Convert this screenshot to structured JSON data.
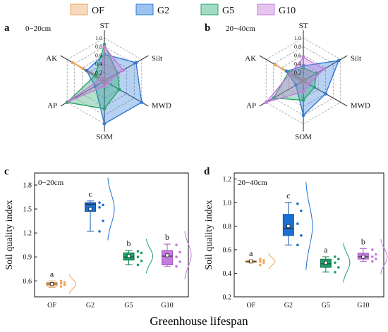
{
  "legend": [
    {
      "name": "OF",
      "fill": "#f9d9bd",
      "stroke": "#e9a766"
    },
    {
      "name": "G2",
      "fill": "#9cc3f1",
      "stroke": "#2f7ad6"
    },
    {
      "name": "G5",
      "fill": "#a3dcc4",
      "stroke": "#27a36a"
    },
    {
      "name": "G10",
      "fill": "#e6c5f1",
      "stroke": "#c27ade"
    }
  ],
  "colors": {
    "OF": {
      "box": "#f7c89a",
      "edge": "#e09a50",
      "dot": "#f0a45a"
    },
    "G2": {
      "box": "#1b6fd1",
      "edge": "#1558a8",
      "dot": "#1b6fd1"
    },
    "G5": {
      "box": "#1aa164",
      "edge": "#127a4b",
      "dot": "#1aa164"
    },
    "G10": {
      "box": "#c37bdf",
      "edge": "#a35cc0",
      "dot": "#c37bdf"
    }
  },
  "xlabel": "Greenhouse lifespan",
  "chart_data": [
    {
      "type": "radar",
      "panel": "a",
      "depth": "0−20cm",
      "axes": [
        "ST",
        "Silt",
        "MWD",
        "SOM",
        "AP",
        "AK"
      ],
      "rticks": [
        "0.2",
        "0.4",
        "0.6",
        "0.8",
        "1.0"
      ],
      "rlim": [
        0,
        1
      ],
      "series": [
        {
          "name": "OF",
          "values": [
            0.05,
            0.05,
            0.05,
            0.05,
            0.05,
            0.85
          ]
        },
        {
          "name": "G2",
          "values": [
            0.62,
            0.85,
            1.0,
            1.0,
            0.25,
            0.48
          ]
        },
        {
          "name": "G5",
          "values": [
            0.85,
            0.35,
            0.4,
            0.65,
            1.0,
            0.25
          ]
        },
        {
          "name": "G10",
          "values": [
            0.8,
            0.5,
            0.08,
            0.12,
            0.95,
            0.1
          ]
        }
      ]
    },
    {
      "type": "radar",
      "panel": "b",
      "depth": "20−40cm",
      "axes": [
        "ST",
        "Silt",
        "MWD",
        "SOM",
        "AP",
        "AK"
      ],
      "rticks": [
        "0.2",
        "0.4",
        "0.6",
        "0.8",
        "1.0"
      ],
      "rlim": [
        0,
        1
      ],
      "series": [
        {
          "name": "OF",
          "values": [
            0.05,
            0.05,
            0.05,
            0.05,
            0.05,
            0.75
          ]
        },
        {
          "name": "G2",
          "values": [
            0.35,
            0.95,
            0.6,
            0.8,
            0.2,
            0.45
          ]
        },
        {
          "name": "G5",
          "values": [
            0.3,
            0.35,
            0.3,
            0.45,
            0.8,
            0.4
          ]
        },
        {
          "name": "G10",
          "values": [
            0.55,
            0.55,
            0.15,
            0.25,
            1.0,
            0.35
          ]
        }
      ]
    },
    {
      "type": "box",
      "panel": "c",
      "depth": "0−20cm",
      "ylabel": "Soil quality index",
      "categories": [
        "OF",
        "G2",
        "G5",
        "G10"
      ],
      "ylim": [
        0.4,
        1.95
      ],
      "yticks": [
        "0.6",
        "0.9",
        "1.2",
        "1.5",
        "1.8"
      ],
      "boxes": [
        {
          "name": "OF",
          "min": 0.52,
          "q1": 0.535,
          "median": 0.56,
          "q3": 0.58,
          "max": 0.6,
          "mean": 0.56,
          "letter": "a",
          "points": [
            0.53,
            0.55,
            0.57,
            0.58,
            0.6
          ]
        },
        {
          "name": "G2",
          "min": 1.22,
          "q1": 1.47,
          "median": 1.56,
          "q3": 1.58,
          "max": 1.6,
          "mean": 1.5,
          "letter": "c",
          "points": [
            1.22,
            1.35,
            1.52,
            1.55,
            1.58
          ]
        },
        {
          "name": "G5",
          "min": 0.8,
          "q1": 0.86,
          "median": 0.9,
          "q3": 0.95,
          "max": 0.98,
          "mean": 0.91,
          "letter": "b",
          "points": [
            0.8,
            0.85,
            0.9,
            0.95,
            0.97
          ]
        },
        {
          "name": "G10",
          "min": 0.78,
          "q1": 0.8,
          "median": 0.91,
          "q3": 0.98,
          "max": 1.06,
          "mean": 0.92,
          "letter": "b",
          "points": [
            0.78,
            0.84,
            0.9,
            0.96,
            1.05
          ]
        }
      ]
    },
    {
      "type": "box",
      "panel": "d",
      "depth": "20−40cm",
      "ylabel": "Soil quality index",
      "categories": [
        "OF",
        "G2",
        "G5",
        "G10"
      ],
      "ylim": [
        0.2,
        1.25
      ],
      "yticks": [
        "0.2",
        "0.4",
        "0.6",
        "0.8",
        "1.0",
        "1.2"
      ],
      "boxes": [
        {
          "name": "OF",
          "min": 0.49,
          "q1": 0.492,
          "median": 0.5,
          "q3": 0.505,
          "max": 0.51,
          "mean": 0.5,
          "letter": "a",
          "points": [
            0.47,
            0.49,
            0.5,
            0.51,
            0.52
          ]
        },
        {
          "name": "G2",
          "min": 0.64,
          "q1": 0.72,
          "median": 0.78,
          "q3": 0.9,
          "max": 1.0,
          "mean": 0.8,
          "letter": "c",
          "points": [
            0.64,
            0.72,
            0.82,
            0.93,
            0.99
          ]
        },
        {
          "name": "G5",
          "min": 0.41,
          "q1": 0.45,
          "median": 0.48,
          "q3": 0.52,
          "max": 0.54,
          "mean": 0.49,
          "letter": "a",
          "points": [
            0.41,
            0.45,
            0.49,
            0.52,
            0.54
          ]
        },
        {
          "name": "G10",
          "min": 0.5,
          "q1": 0.52,
          "median": 0.54,
          "q3": 0.57,
          "max": 0.61,
          "mean": 0.54,
          "letter": "b",
          "points": [
            0.5,
            0.52,
            0.54,
            0.56,
            0.6
          ]
        }
      ]
    }
  ]
}
